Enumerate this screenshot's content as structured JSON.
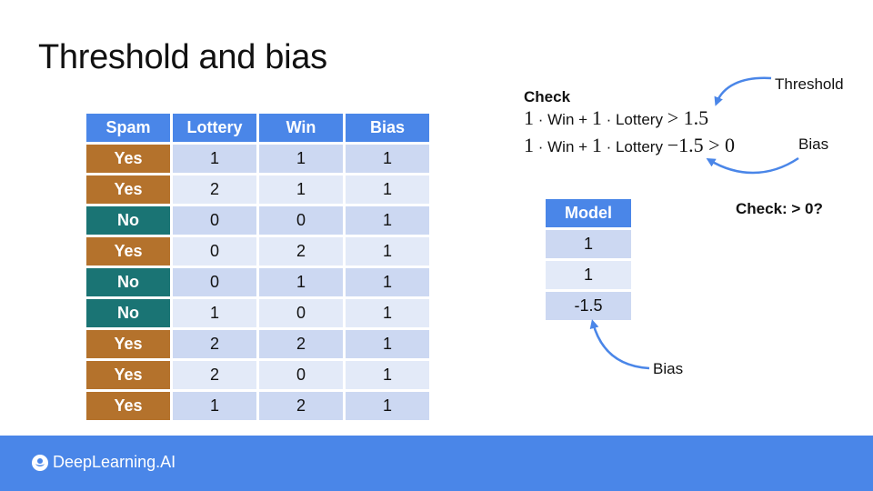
{
  "slide": {
    "title": "Threshold and bias"
  },
  "data_table": {
    "headers": [
      "Spam",
      "Lottery",
      "Win",
      "Bias"
    ],
    "rows": [
      {
        "spam": "Yes",
        "lottery": "1",
        "win": "1",
        "bias": "1"
      },
      {
        "spam": "Yes",
        "lottery": "2",
        "win": "1",
        "bias": "1"
      },
      {
        "spam": "No",
        "lottery": "0",
        "win": "0",
        "bias": "1"
      },
      {
        "spam": "Yes",
        "lottery": "0",
        "win": "2",
        "bias": "1"
      },
      {
        "spam": "No",
        "lottery": "0",
        "win": "1",
        "bias": "1"
      },
      {
        "spam": "No",
        "lottery": "1",
        "win": "0",
        "bias": "1"
      },
      {
        "spam": "Yes",
        "lottery": "2",
        "win": "2",
        "bias": "1"
      },
      {
        "spam": "Yes",
        "lottery": "2",
        "win": "0",
        "bias": "1"
      },
      {
        "spam": "Yes",
        "lottery": "1",
        "win": "2",
        "bias": "1"
      }
    ]
  },
  "model_table": {
    "header": "Model",
    "values": [
      "1",
      "1",
      "-1.5"
    ]
  },
  "check": {
    "heading": "Check",
    "eq1": {
      "c1": "1",
      "dot1": "·",
      "word1": "Win",
      "plus": "+",
      "c2": "1",
      "dot2": "·",
      "word2": "Lottery",
      "rel": "> 1.5"
    },
    "eq2": {
      "c1": "1",
      "dot1": "·",
      "word1": "Win",
      "plus": "+",
      "c2": "1",
      "dot2": "·",
      "word2": "Lottery",
      "rel": "−1.5 > 0"
    }
  },
  "annotations": {
    "threshold": "Threshold",
    "bias_top": "Bias",
    "check_gt0": "Check: > 0?",
    "bias_bottom": "Bias"
  },
  "footer": {
    "brand": "DeepLearning.AI",
    "logo_icon": "deeplearning-logo-icon"
  },
  "colors": {
    "header_blue": "#4a86e8",
    "yes_orange": "#b4722c",
    "no_teal": "#1a7474",
    "row_light": "#e3eaf8",
    "row_mid": "#ccd8f2",
    "footer_blue": "#4a86e8"
  }
}
